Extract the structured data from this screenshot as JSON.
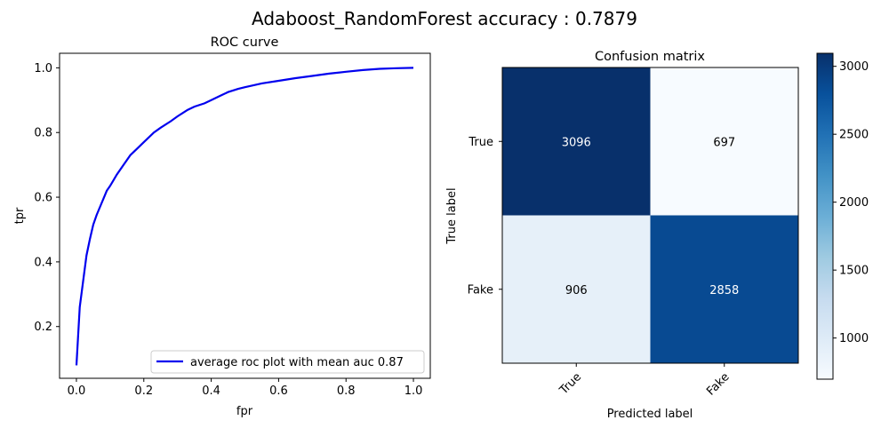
{
  "figure": {
    "title": "Adaboost_RandomForest accuracy : 0.7879"
  },
  "chart_data": [
    {
      "type": "line",
      "title": "ROC curve",
      "xlabel": "fpr",
      "ylabel": "tpr",
      "xlim": [
        -0.05,
        1.05
      ],
      "ylim": [
        0.04,
        1.045
      ],
      "xticks": [
        "0.0",
        "0.2",
        "0.4",
        "0.6",
        "0.8",
        "1.0"
      ],
      "yticks": [
        "0.2",
        "0.4",
        "0.6",
        "0.8",
        "1.0"
      ],
      "grid": false,
      "legend_position": "lower right",
      "color": "#0000ee",
      "series": [
        {
          "name": "average roc plot with mean auc 0.87",
          "x": [
            0.0,
            0.01,
            0.02,
            0.03,
            0.04,
            0.05,
            0.06,
            0.07,
            0.08,
            0.09,
            0.1,
            0.12,
            0.14,
            0.16,
            0.18,
            0.2,
            0.23,
            0.25,
            0.28,
            0.3,
            0.33,
            0.35,
            0.38,
            0.4,
            0.43,
            0.45,
            0.48,
            0.5,
            0.55,
            0.6,
            0.65,
            0.7,
            0.75,
            0.8,
            0.85,
            0.9,
            0.95,
            1.0
          ],
          "y": [
            0.08,
            0.26,
            0.34,
            0.42,
            0.47,
            0.515,
            0.545,
            0.57,
            0.595,
            0.62,
            0.635,
            0.67,
            0.7,
            0.73,
            0.75,
            0.77,
            0.8,
            0.815,
            0.835,
            0.85,
            0.87,
            0.88,
            0.89,
            0.9,
            0.915,
            0.925,
            0.935,
            0.94,
            0.952,
            0.96,
            0.968,
            0.975,
            0.982,
            0.988,
            0.993,
            0.997,
            0.999,
            1.0
          ]
        }
      ]
    },
    {
      "type": "heatmap",
      "title": "Confusion matrix",
      "xlabel": "Predicted label",
      "ylabel": "True label",
      "x_categories": [
        "True",
        "Fake"
      ],
      "y_categories": [
        "True",
        "Fake"
      ],
      "values": [
        [
          3096,
          697
        ],
        [
          906,
          2858
        ]
      ],
      "colormap": "Blues",
      "colorbar": {
        "min": 697,
        "max": 3096,
        "ticks": [
          "1000",
          "1500",
          "2000",
          "2500",
          "3000"
        ]
      }
    }
  ]
}
